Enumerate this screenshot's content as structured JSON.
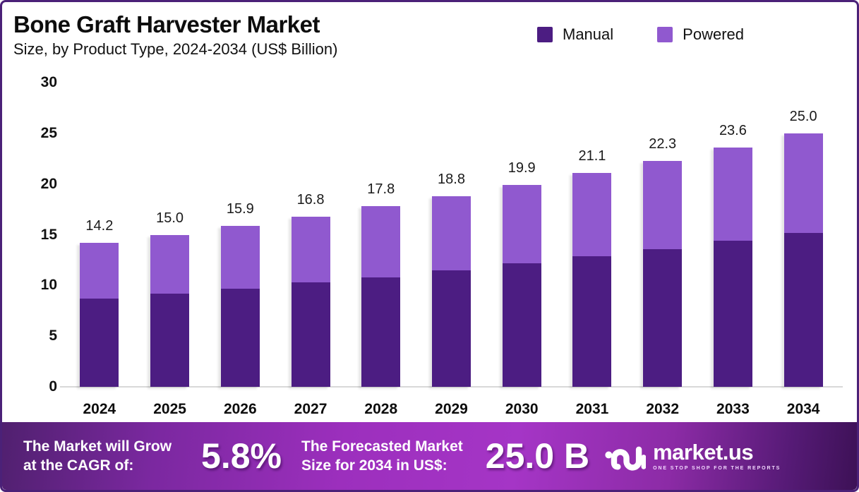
{
  "header": {
    "title": "Bone Graft Harvester Market",
    "subtitle": "Size, by Product Type, 2024-2034 (US$ Billion)"
  },
  "colors": {
    "manual": "#4c1d82",
    "powered": "#9059cf",
    "border": "#4b2178",
    "banner_center": "#a535c6",
    "banner_edge": "#4a1b66"
  },
  "chart_data": {
    "type": "bar",
    "stacked": true,
    "title": "Bone Graft Harvester Market",
    "subtitle": "Size, by Product Type, 2024-2034 (US$ Billion)",
    "categories": [
      "2024",
      "2025",
      "2026",
      "2027",
      "2028",
      "2029",
      "2030",
      "2031",
      "2032",
      "2033",
      "2034"
    ],
    "series": [
      {
        "name": "Manual",
        "color": "#4c1d82",
        "values": [
          8.7,
          9.2,
          9.7,
          10.3,
          10.8,
          11.5,
          12.2,
          12.9,
          13.6,
          14.4,
          15.2
        ]
      },
      {
        "name": "Powered",
        "color": "#9059cf",
        "values": [
          5.5,
          5.8,
          6.2,
          6.5,
          7.0,
          7.3,
          7.7,
          8.2,
          8.7,
          9.2,
          9.8
        ]
      }
    ],
    "totals": [
      14.2,
      15.0,
      15.9,
      16.8,
      17.8,
      18.8,
      19.9,
      21.1,
      22.3,
      23.6,
      25.0
    ],
    "total_labels": [
      "14.2",
      "15.0",
      "15.9",
      "16.8",
      "17.8",
      "18.8",
      "19.9",
      "21.1",
      "22.3",
      "23.6",
      "25.0"
    ],
    "ylim": [
      0,
      30
    ],
    "yticks": [
      0,
      5,
      10,
      15,
      20,
      25,
      30
    ],
    "grid": false,
    "legend_position": "top-right",
    "legend": [
      "Manual",
      "Powered"
    ]
  },
  "footer": {
    "cagr_label_line1": "The Market will Grow",
    "cagr_label_line2": "at the CAGR of:",
    "cagr_value": "5.8%",
    "forecast_label_line1": "The Forecasted Market",
    "forecast_label_line2": "Size for 2034 in US$:",
    "forecast_value": "25.0 B",
    "brand": {
      "name": "market.us",
      "tagline": "ONE STOP SHOP FOR THE REPORTS"
    }
  }
}
